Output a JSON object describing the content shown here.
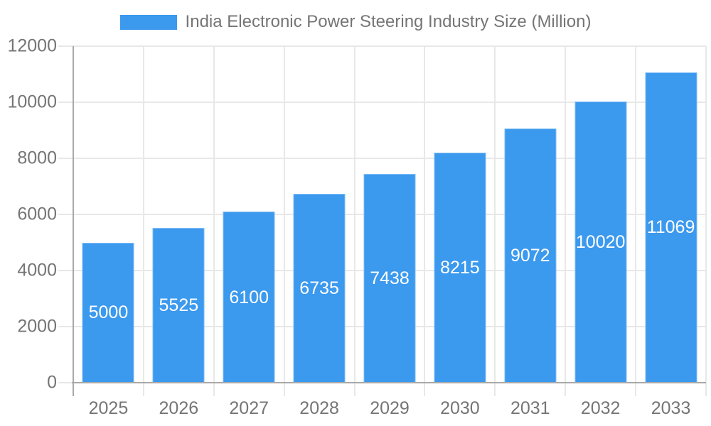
{
  "legend": {
    "label": "India Electronic Power Steering Industry Size (Million)",
    "swatch_color": "#3b99ee"
  },
  "chart_data": {
    "type": "bar",
    "title": "India Electronic Power Steering Industry Size (Million)",
    "categories": [
      "2025",
      "2026",
      "2027",
      "2028",
      "2029",
      "2030",
      "2031",
      "2032",
      "2033"
    ],
    "values": [
      5000,
      5525,
      6100,
      6735,
      7438,
      8215,
      9072,
      10020,
      11069
    ],
    "xlabel": "",
    "ylabel": "",
    "ylim": [
      0,
      12000
    ],
    "yticks": [
      0,
      2000,
      4000,
      6000,
      8000,
      10000,
      12000
    ],
    "grid": true,
    "legend_position": "top",
    "value_label_position": "center-inside",
    "colors": {
      "bar": "#3b99ee",
      "value_label": "#ffffff",
      "axis_text": "#757575",
      "gridline": "#e8e8e8",
      "axis_line": "#a9a9a9",
      "background": "#ffffff"
    }
  }
}
